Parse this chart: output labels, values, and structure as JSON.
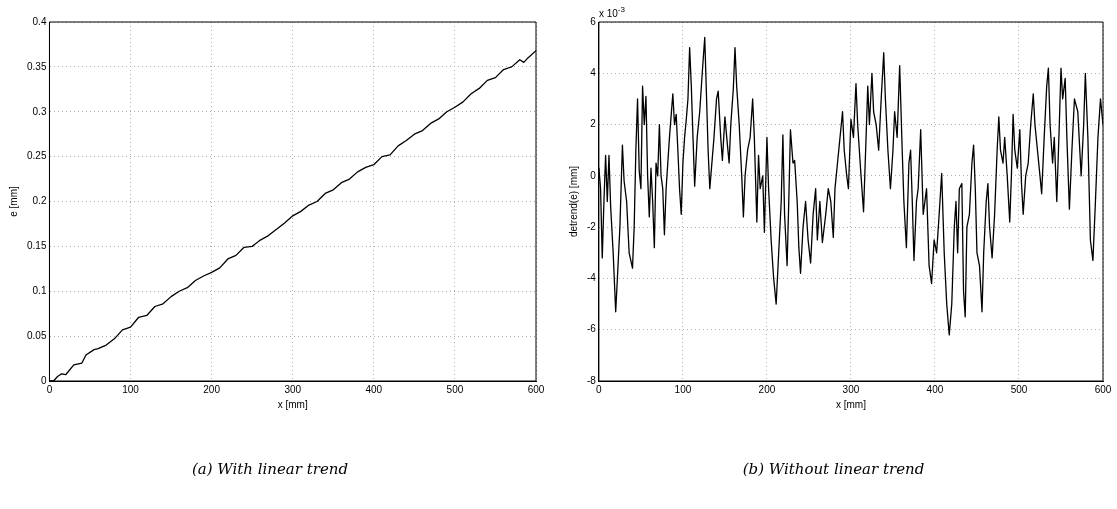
{
  "chart_data": [
    {
      "type": "line",
      "title": "(a) With linear trend",
      "xlabel": "x [mm]",
      "ylabel": "e [mm]",
      "color": "#000000",
      "marker": "none",
      "line_style": "solid",
      "grid": true,
      "xlim": [
        0,
        600
      ],
      "xticks": [
        0,
        100,
        200,
        300,
        400,
        500,
        600
      ],
      "ylim": [
        0,
        0.4
      ],
      "yticks": [
        0,
        0.05,
        0.1,
        0.15,
        0.2,
        0.25,
        0.3,
        0.35,
        0.4
      ],
      "x": [
        0,
        5,
        10,
        15,
        20,
        30,
        40,
        45,
        55,
        60,
        70,
        80,
        90,
        100,
        110,
        120,
        130,
        140,
        150,
        160,
        170,
        180,
        190,
        200,
        210,
        220,
        230,
        240,
        250,
        260,
        270,
        280,
        290,
        300,
        310,
        320,
        330,
        340,
        350,
        360,
        370,
        380,
        390,
        400,
        410,
        420,
        430,
        440,
        450,
        460,
        470,
        480,
        490,
        500,
        510,
        520,
        530,
        540,
        550,
        560,
        570,
        580,
        585,
        590,
        600
      ],
      "values": [
        0,
        0,
        0.005,
        0.008,
        0.007,
        0.018,
        0.02,
        0.029,
        0.035,
        0.036,
        0.04,
        0.047,
        0.057,
        0.06,
        0.071,
        0.073,
        0.083,
        0.086,
        0.094,
        0.1,
        0.104,
        0.112,
        0.117,
        0.121,
        0.126,
        0.136,
        0.14,
        0.149,
        0.15,
        0.157,
        0.162,
        0.169,
        0.176,
        0.184,
        0.189,
        0.196,
        0.2,
        0.209,
        0.213,
        0.221,
        0.225,
        0.233,
        0.238,
        0.241,
        0.25,
        0.252,
        0.262,
        0.268,
        0.275,
        0.279,
        0.287,
        0.292,
        0.3,
        0.305,
        0.311,
        0.32,
        0.326,
        0.335,
        0.338,
        0.347,
        0.35,
        0.358,
        0.355,
        0.36,
        0.368
      ]
    },
    {
      "type": "line",
      "title": "(b) Without linear trend",
      "xlabel": "x [mm]",
      "ylabel": "detrend(e) [mm]",
      "annotations": [
        "x 10$^{-3}$"
      ],
      "color": "#000000",
      "marker": "none",
      "line_style": "solid",
      "grid": true,
      "xlim": [
        0,
        600
      ],
      "xticks": [
        0,
        100,
        200,
        300,
        400,
        500,
        600
      ],
      "ylim": [
        -8,
        6
      ],
      "yticks": [
        -8,
        -6,
        -4,
        -2,
        0,
        2,
        4,
        6
      ],
      "x": [
        0,
        2,
        4,
        6,
        8,
        10,
        12,
        14,
        17,
        20,
        22,
        25,
        28,
        30,
        33,
        36,
        40,
        42,
        44,
        46,
        48,
        50,
        52,
        54,
        56,
        58,
        60,
        62,
        64,
        66,
        68,
        70,
        72,
        74,
        76,
        78,
        80,
        84,
        88,
        90,
        92,
        94,
        96,
        98,
        100,
        102,
        104,
        106,
        108,
        110,
        112,
        114,
        117,
        120,
        123,
        126,
        128,
        130,
        132,
        134,
        137,
        140,
        142,
        145,
        147,
        150,
        153,
        155,
        157,
        160,
        162,
        164,
        167,
        170,
        172,
        174,
        177,
        180,
        183,
        185,
        188,
        190,
        192,
        195,
        197,
        200,
        202,
        205,
        208,
        211,
        214,
        217,
        219,
        221,
        224,
        226,
        228,
        231,
        233,
        236,
        238,
        240,
        243,
        246,
        249,
        252,
        255,
        258,
        260,
        263,
        266,
        270,
        273,
        276,
        279,
        281,
        284,
        287,
        290,
        292,
        295,
        297,
        300,
        303,
        306,
        308,
        310,
        312,
        315,
        318,
        320,
        322,
        325,
        327,
        330,
        333,
        336,
        339,
        341,
        344,
        347,
        350,
        352,
        355,
        358,
        361,
        363,
        366,
        369,
        371,
        373,
        375,
        378,
        380,
        383,
        386,
        390,
        393,
        396,
        399,
        402,
        405,
        408,
        411,
        414,
        417,
        420,
        423,
        425,
        427,
        429,
        432,
        434,
        436,
        438,
        441,
        444,
        446,
        448,
        450,
        453,
        456,
        458,
        461,
        463,
        465,
        468,
        471,
        474,
        476,
        478,
        481,
        483,
        486,
        489,
        491,
        493,
        495,
        498,
        501,
        503,
        505,
        508,
        511,
        514,
        517,
        519,
        522,
        525,
        527,
        530,
        533,
        535,
        537,
        540,
        542,
        545,
        548,
        550,
        552,
        555,
        557,
        560,
        563,
        566,
        570,
        574,
        577,
        579,
        582,
        585,
        588,
        591,
        594,
        597,
        600
      ],
      "values": [
        0.3,
        -0.5,
        -3.2,
        -1,
        0.8,
        -1,
        0.8,
        -1.2,
        -3,
        -5.3,
        -4,
        -2,
        1.2,
        -0.2,
        -1,
        -3,
        -3.6,
        -2,
        1,
        3,
        0.2,
        -0.5,
        3.5,
        2,
        3.1,
        0,
        -1.6,
        0.3,
        -1,
        -2.8,
        0.5,
        0,
        2,
        0,
        -0.5,
        -2.3,
        -0.5,
        1.5,
        3.2,
        2,
        2.4,
        1,
        -0.5,
        -1.5,
        0.5,
        1.5,
        2.2,
        3,
        5,
        3.5,
        1.5,
        -0.4,
        1.5,
        2.5,
        4,
        5.4,
        3.2,
        1,
        -0.5,
        0.3,
        1.5,
        3,
        3.3,
        1.5,
        0.6,
        2.3,
        1.2,
        0.5,
        2,
        3.4,
        5,
        3.5,
        2,
        0,
        -1.6,
        0,
        1,
        1.5,
        3,
        1.5,
        -1.8,
        0.8,
        -0.5,
        0,
        -2.2,
        1.5,
        -0.5,
        -2.5,
        -4,
        -5,
        -3,
        -1,
        1.6,
        -1.5,
        -3.5,
        -1,
        1.8,
        0.5,
        0.6,
        -1,
        -2.8,
        -3.8,
        -2,
        -1,
        -2.5,
        -3.4,
        -1.5,
        -0.5,
        -2.5,
        -1,
        -2.6,
        -1.5,
        -0.5,
        -1,
        -2.4,
        -0.5,
        0.5,
        1.5,
        2.5,
        1,
        0,
        -0.5,
        2.2,
        1.5,
        3.6,
        2,
        1,
        0,
        -1.4,
        1.5,
        3.5,
        2,
        4,
        2.5,
        2,
        1,
        3,
        4.8,
        3,
        1,
        -0.5,
        1,
        2.5,
        1.5,
        4.3,
        1,
        -1,
        -2.8,
        0.5,
        1,
        -1,
        -3.3,
        -1,
        -0.5,
        1.8,
        -1.5,
        -0.5,
        -3.5,
        -4.2,
        -2.5,
        -3,
        -1.5,
        0.1,
        -3,
        -5,
        -6.2,
        -5,
        -2,
        -1,
        -3,
        -0.5,
        -0.3,
        -4.5,
        -5.5,
        -2,
        -1.5,
        0.5,
        1.2,
        -0.5,
        -3,
        -3.5,
        -5.3,
        -3,
        -1,
        -0.3,
        -2,
        -3.2,
        -1.5,
        1,
        2.3,
        1,
        0.5,
        1.5,
        0,
        -1.8,
        0,
        2.4,
        1,
        0.3,
        1.8,
        -0.3,
        -1.5,
        0,
        0.5,
        2,
        3.2,
        2,
        1,
        0,
        -0.7,
        1.5,
        3.5,
        4.2,
        2,
        0.5,
        1.5,
        -1,
        2,
        4.2,
        3,
        3.8,
        1.5,
        -1.3,
        1,
        3,
        2.5,
        0,
        2,
        4,
        1.5,
        -2.5,
        -3.3,
        -1,
        1.5,
        3,
        2
      ]
    }
  ]
}
